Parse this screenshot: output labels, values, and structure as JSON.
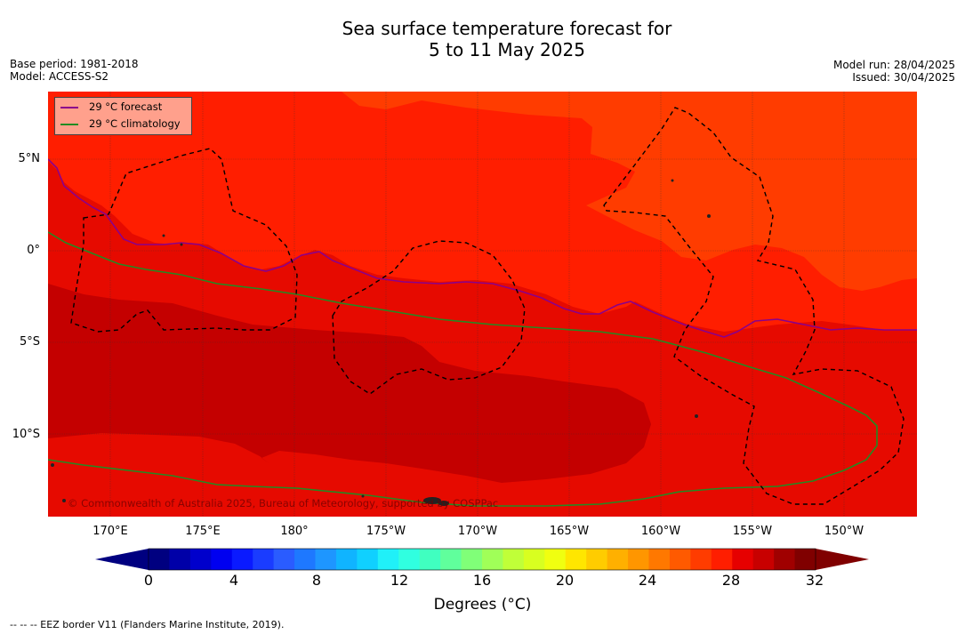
{
  "title": {
    "line1": "Sea surface temperature forecast for",
    "line2": "5 to 11 May 2025"
  },
  "meta_left": {
    "base_period": "Base period: 1981-2018",
    "model": "Model: ACCESS-S2"
  },
  "meta_right": {
    "model_run": "Model run: 28/04/2025",
    "issued": "Issued: 30/04/2025"
  },
  "map": {
    "lat_labels": [
      "5°N",
      "0°",
      "5°S",
      "10°S"
    ],
    "lon_labels": [
      "170°E",
      "175°E",
      "180°",
      "175°W",
      "170°W",
      "165°W",
      "160°W",
      "155°W",
      "150°W"
    ],
    "legend": [
      {
        "label": "29 °C  forecast",
        "color": "#8b008b"
      },
      {
        "label": "29 °C  climatology",
        "color": "#228b22"
      }
    ],
    "copyright": "© Commonwealth of Australia 2025, Bureau of Meteorology, supported by COSPPac"
  },
  "colorbar": {
    "ticks": [
      "0",
      "4",
      "8",
      "12",
      "16",
      "20",
      "24",
      "28",
      "32"
    ],
    "title": "Degrees (°C)",
    "colors": [
      "#000080",
      "#0000a8",
      "#0000cc",
      "#0000f0",
      "#0a1aff",
      "#1a3cff",
      "#2a5cff",
      "#1e78ff",
      "#1e96ff",
      "#10b4ff",
      "#10d0ff",
      "#20f0f8",
      "#30ffe0",
      "#40ffc0",
      "#60ff9c",
      "#80ff78",
      "#a0ff58",
      "#c0ff38",
      "#d8ff20",
      "#f0ff10",
      "#ffe600",
      "#ffcc00",
      "#ffb000",
      "#ff9600",
      "#ff7800",
      "#ff5a00",
      "#ff3c00",
      "#ff1e00",
      "#e60000",
      "#c80000",
      "#a00000",
      "#800000"
    ]
  },
  "footnote": "-- -- -- EEZ border V11 (Flanders Marine Institute, 2019)."
}
